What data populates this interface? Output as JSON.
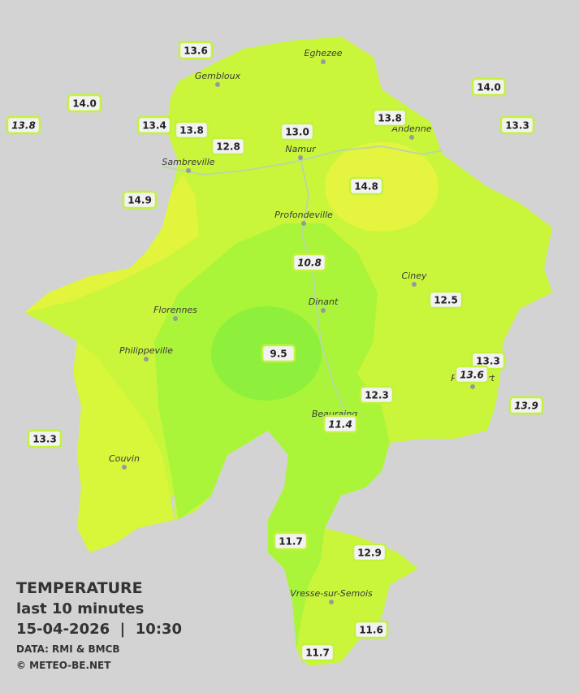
{
  "header": {
    "title": "TEMPERATURE",
    "subtitle": "last 10 minutes",
    "datetime": "15-04-2026  |  10:30",
    "source": "DATA: RMI & BMCB",
    "credit": "© METEO-BE.NET"
  },
  "towns": [
    "Eghezee",
    "Gembloux",
    "Andenne",
    "Namur",
    "Sambreville",
    "Profondeville",
    "Ciney",
    "Dinant",
    "Florennes",
    "Philippeville",
    "Rochefort",
    "Beauraing",
    "Couvin",
    "Vresse-sur-Semois"
  ],
  "stations": [
    "13.6",
    "14.0",
    "13.8",
    "13.4",
    "13.8",
    "12.8",
    "13.0",
    "13.8",
    "14.0",
    "13.3",
    "14.8",
    "14.9",
    "10.8",
    "12.5",
    "9.5",
    "13.3",
    "13.6",
    "12.3",
    "13.9",
    "11.4",
    "13.3",
    "11.7",
    "12.9",
    "11.6",
    "11.7"
  ]
}
